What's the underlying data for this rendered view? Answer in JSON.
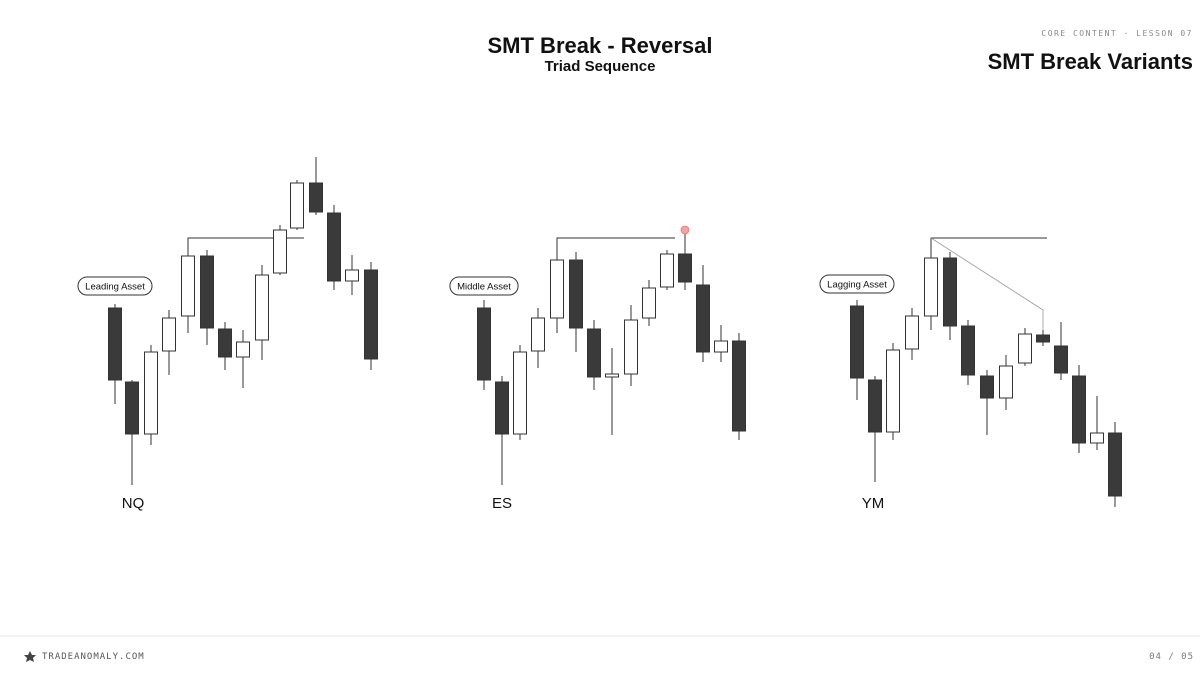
{
  "header": {
    "lesson": "CORE CONTENT · LESSON 07",
    "title": "SMT Break Variants"
  },
  "slide": {
    "title": "SMT Break - Reversal",
    "subtitle": "Triad Sequence"
  },
  "panels": [
    {
      "label": "Leading Asset",
      "asset": "NQ"
    },
    {
      "label": "Middle Asset",
      "asset": "ES"
    },
    {
      "label": "Lagging Asset",
      "asset": "YM"
    }
  ],
  "footer": {
    "brand": "TRADEANOMALY.COM",
    "page": "04 / 05"
  }
}
